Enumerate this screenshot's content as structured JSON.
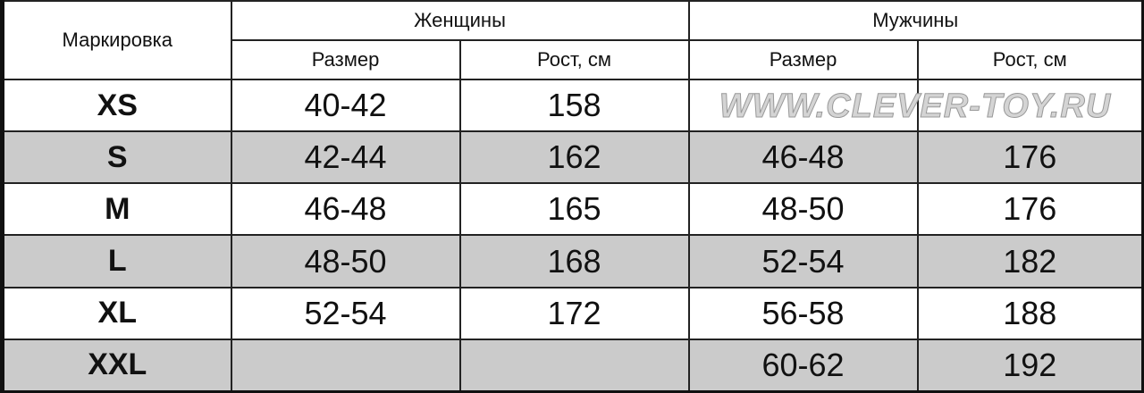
{
  "header": {
    "marking": "Маркировка",
    "women": "Женщины",
    "men": "Мужчины",
    "women_size": "Размер",
    "women_height": "Рост, см",
    "men_size": "Размер",
    "men_height": "Рост, см"
  },
  "rows": [
    {
      "mark": "XS",
      "w_size": "40-42",
      "w_height": "158",
      "m_size": "",
      "m_height": "",
      "shaded": false
    },
    {
      "mark": "S",
      "w_size": "42-44",
      "w_height": "162",
      "m_size": "46-48",
      "m_height": "176",
      "shaded": true
    },
    {
      "mark": "M",
      "w_size": "46-48",
      "w_height": "165",
      "m_size": "48-50",
      "m_height": "176",
      "shaded": false
    },
    {
      "mark": "L",
      "w_size": "48-50",
      "w_height": "168",
      "m_size": "52-54",
      "m_height": "182",
      "shaded": true
    },
    {
      "mark": "XL",
      "w_size": "52-54",
      "w_height": "172",
      "m_size": "56-58",
      "m_height": "188",
      "shaded": false
    },
    {
      "mark": "XXL",
      "w_size": "",
      "w_height": "",
      "m_size": "60-62",
      "m_height": "192",
      "shaded": true
    }
  ],
  "watermark": "WWW.CLEVER-TOY.RU",
  "colors": {
    "shade": "#cbcbcb",
    "border": "#222222"
  }
}
